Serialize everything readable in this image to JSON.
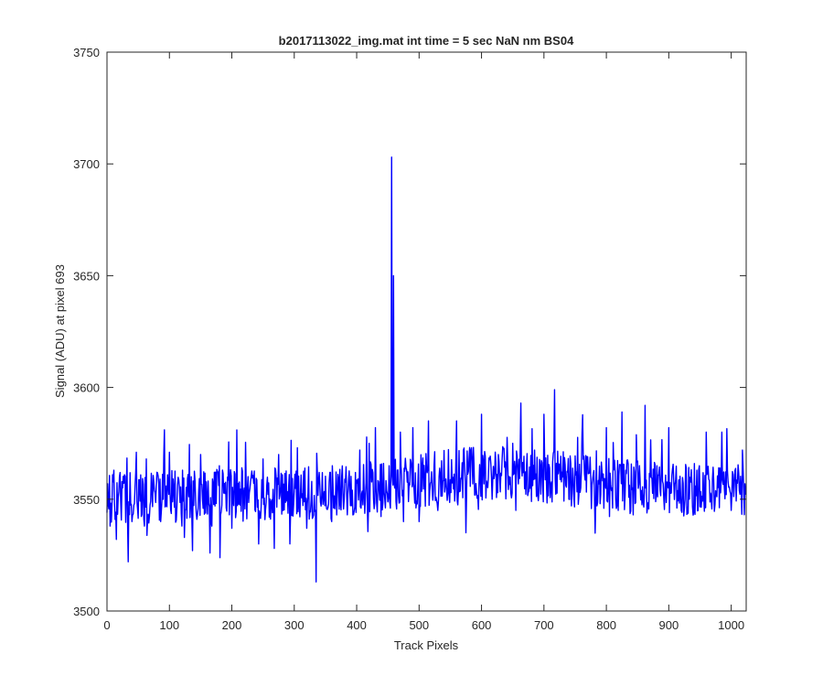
{
  "chart_data": {
    "type": "line",
    "title": "b2017113022_img.mat int time = 5 sec  NaN nm BS04",
    "xlabel": "Track Pixels",
    "ylabel": "Signal (ADU) at pixel 693",
    "xlim": [
      0,
      1024
    ],
    "ylim": [
      3500,
      3750
    ],
    "xticks": [
      0,
      100,
      200,
      300,
      400,
      500,
      600,
      700,
      800,
      900,
      1000
    ],
    "yticks": [
      3500,
      3550,
      3600,
      3650,
      3700,
      3750
    ],
    "grid": false,
    "line_color": "#0000ff",
    "series": [
      {
        "n_points": 1024,
        "baseline_start": 3551,
        "baseline_end": 3554,
        "baseline_bump_center": 620,
        "baseline_bump_height": 9,
        "noise_amplitude": 12,
        "x": [
          0,
          5,
          15,
          20,
          34,
          40,
          47,
          60,
          63,
          86,
          100,
          120,
          137,
          150,
          168,
          180,
          200,
          208,
          225,
          243,
          250,
          260,
          268,
          275,
          293,
          305,
          320,
          330,
          335,
          340,
          360,
          385,
          405,
          420,
          430,
          456,
          459,
          461,
          470,
          475,
          490,
          500,
          515,
          530,
          560,
          575,
          585,
          600,
          617,
          650,
          655,
          663,
          680,
          700,
          717,
          740,
          800,
          819,
          825,
          843,
          862,
          870,
          900,
          920,
          945,
          960,
          985,
          1000,
          1018,
          1023
        ],
        "y": [
          3544,
          3538,
          3532,
          3560,
          3522,
          3540,
          3571,
          3538,
          3568,
          3540,
          3571,
          3538,
          3527,
          3570,
          3538,
          3565,
          3537,
          3581,
          3555,
          3530,
          3568,
          3542,
          3528,
          3570,
          3530,
          3573,
          3537,
          3542,
          3513,
          3562,
          3540,
          3543,
          3572,
          3575,
          3582,
          3703,
          3650,
          3555,
          3580,
          3540,
          3582,
          3540,
          3585,
          3545,
          3585,
          3535,
          3567,
          3588,
          3550,
          3575,
          3545,
          3593,
          3549,
          3588,
          3599,
          3550,
          3582,
          3545,
          3589,
          3543,
          3592,
          3560,
          3582,
          3545,
          3563,
          3580,
          3580,
          3545,
          3572,
          3552
        ]
      }
    ]
  }
}
